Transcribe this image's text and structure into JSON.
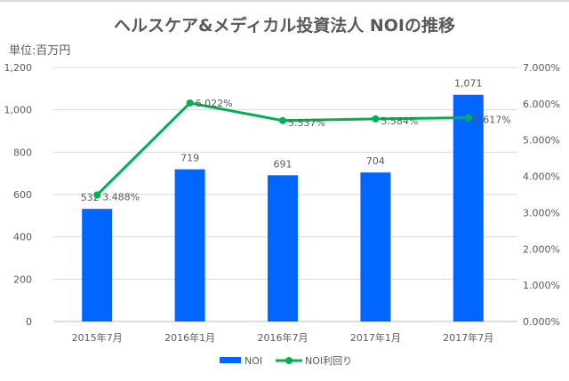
{
  "chart_data": {
    "type": "bar+line",
    "title": "ヘルスケア&メディカル投資法人 NOIの推移",
    "unit_label": "単位:百万円",
    "categories": [
      "2015年7月",
      "2016年1月",
      "2016年7月",
      "2017年1月",
      "2017年7月"
    ],
    "series": [
      {
        "name": "NOI",
        "type": "bar",
        "axis": "left",
        "color": "#0066ff",
        "values": [
          532,
          719,
          691,
          704,
          1071
        ],
        "labels": [
          "532",
          "719",
          "691",
          "704",
          "1,071"
        ]
      },
      {
        "name": "NOI利回り",
        "type": "line",
        "axis": "right",
        "color": "#00b050",
        "values": [
          3.488,
          6.022,
          5.537,
          5.584,
          5.617
        ],
        "labels": [
          "3.488%",
          "6.022%",
          "5.537%",
          "5.584%",
          "5.617%"
        ]
      }
    ],
    "left_axis": {
      "range": [
        0,
        1200
      ],
      "ticks": [
        "0",
        "200",
        "400",
        "600",
        "800",
        "1,000",
        "1,200"
      ]
    },
    "right_axis": {
      "range": [
        0,
        7
      ],
      "ticks": [
        "0.000%",
        "1.000%",
        "2.000%",
        "3.000%",
        "4.000%",
        "5.000%",
        "6.000%",
        "7.000%"
      ]
    },
    "grid": true,
    "legend_position": "bottom"
  }
}
